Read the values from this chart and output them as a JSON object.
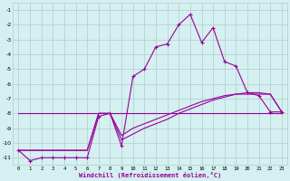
{
  "xlabel": "Windchill (Refroidissement éolien,°C)",
  "background_color": "#d4f0f0",
  "grid_color": "#b0cccc",
  "line_color": "#990099",
  "xlim": [
    -0.5,
    23.5
  ],
  "ylim": [
    -11.5,
    -0.5
  ],
  "yticks": [
    -1,
    -2,
    -3,
    -4,
    -5,
    -6,
    -7,
    -8,
    -9,
    -10,
    -11
  ],
  "xticks": [
    0,
    1,
    2,
    3,
    4,
    5,
    6,
    7,
    8,
    9,
    10,
    11,
    12,
    13,
    14,
    15,
    16,
    17,
    18,
    19,
    20,
    21,
    22,
    23
  ],
  "series": [
    {
      "x": [
        0,
        1,
        2,
        3,
        4,
        5,
        6,
        7,
        8,
        9,
        10,
        11,
        12,
        13,
        14,
        15,
        16,
        17,
        18,
        19,
        20,
        21,
        22,
        23
      ],
      "y": [
        -10.5,
        -11.2,
        -11.0,
        -11.0,
        -11.0,
        -11.0,
        -11.0,
        -8.2,
        -8.0,
        -10.2,
        -5.5,
        -5.0,
        -3.5,
        -3.3,
        -2.0,
        -1.3,
        -3.2,
        -2.2,
        -4.5,
        -4.8,
        -6.6,
        -6.8,
        -7.9,
        -7.9
      ],
      "style": "line_marker",
      "linewidth": 0.8,
      "marker": "+"
    },
    {
      "x": [
        0,
        23
      ],
      "y": [
        -8.0,
        -8.0
      ],
      "style": "line",
      "linewidth": 0.8,
      "linestyle": "-"
    },
    {
      "x": [
        0,
        1,
        2,
        3,
        4,
        5,
        6,
        7,
        8,
        9,
        10,
        11,
        12,
        13,
        14,
        15,
        16,
        17,
        18,
        19,
        20,
        21,
        22,
        23
      ],
      "y": [
        -10.5,
        -10.5,
        -10.5,
        -10.5,
        -10.5,
        -10.5,
        -10.5,
        -8.0,
        -8.0,
        -9.5,
        -9.0,
        -8.7,
        -8.4,
        -8.1,
        -7.8,
        -7.5,
        -7.2,
        -7.0,
        -6.8,
        -6.7,
        -6.7,
        -6.7,
        -6.7,
        -7.9
      ],
      "style": "line",
      "linewidth": 0.8,
      "linestyle": "-"
    },
    {
      "x": [
        0,
        1,
        2,
        3,
        4,
        5,
        6,
        7,
        8,
        9,
        10,
        11,
        12,
        13,
        14,
        15,
        16,
        17,
        18,
        19,
        20,
        21,
        22,
        23
      ],
      "y": [
        -10.5,
        -10.5,
        -10.5,
        -10.5,
        -10.5,
        -10.5,
        -10.5,
        -8.0,
        -8.0,
        -9.8,
        -9.4,
        -9.0,
        -8.7,
        -8.4,
        -8.0,
        -7.7,
        -7.4,
        -7.1,
        -6.9,
        -6.7,
        -6.6,
        -6.6,
        -6.7,
        -7.9
      ],
      "style": "line",
      "linewidth": 0.8,
      "linestyle": "-"
    }
  ]
}
